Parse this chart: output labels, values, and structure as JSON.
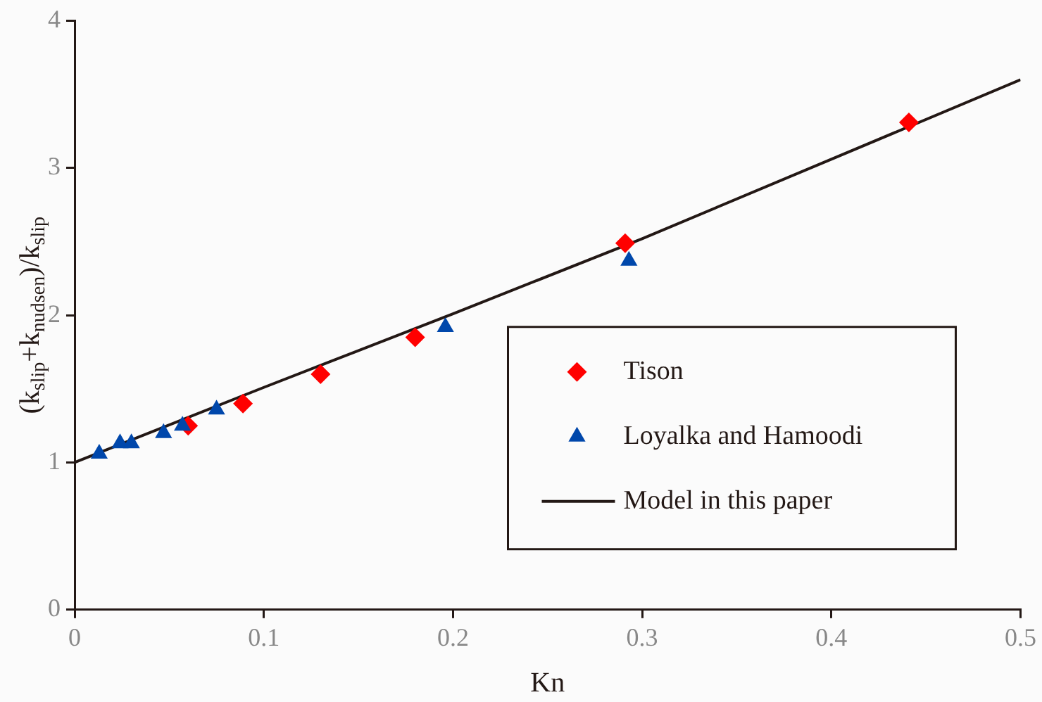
{
  "chart_data": {
    "type": "scatter",
    "xlabel": "Kn",
    "ylabel": "(k$_{slip}$+k$_{nudsen}$)/k$_{slip}$",
    "xlim": [
      0,
      0.5
    ],
    "xticks": [
      0,
      0.1,
      0.2,
      0.3,
      0.4,
      0.5
    ],
    "ylim": [
      0,
      4
    ],
    "yticks": [
      0,
      1,
      2,
      3,
      4
    ],
    "grid": false,
    "legend": "bottom right",
    "series": [
      {
        "name": "Tison",
        "color": "#ff0000",
        "marker": "diamond",
        "x": [
          0.06,
          0.089,
          0.13,
          0.18,
          0.291,
          0.441
        ],
        "values": [
          1.25,
          1.4,
          1.6,
          1.85,
          2.49,
          3.31
        ]
      },
      {
        "name": "Loyalka and Hamoodi",
        "color": "#0047ab",
        "marker": "triangle",
        "x": [
          0.013,
          0.024,
          0.03,
          0.047,
          0.057,
          0.075,
          0.196,
          0.293
        ],
        "values": [
          1.06,
          1.13,
          1.13,
          1.2,
          1.25,
          1.36,
          1.92,
          2.37
        ]
      },
      {
        "name": "Model in this paper",
        "type": "line",
        "color": "#231815",
        "marker": "none",
        "line_style": "solid",
        "x": [
          0,
          0.1,
          0.2,
          0.3,
          0.4,
          0.5
        ],
        "values": [
          1.0,
          1.51,
          2.01,
          2.52,
          3.06,
          3.6
        ]
      }
    ]
  }
}
